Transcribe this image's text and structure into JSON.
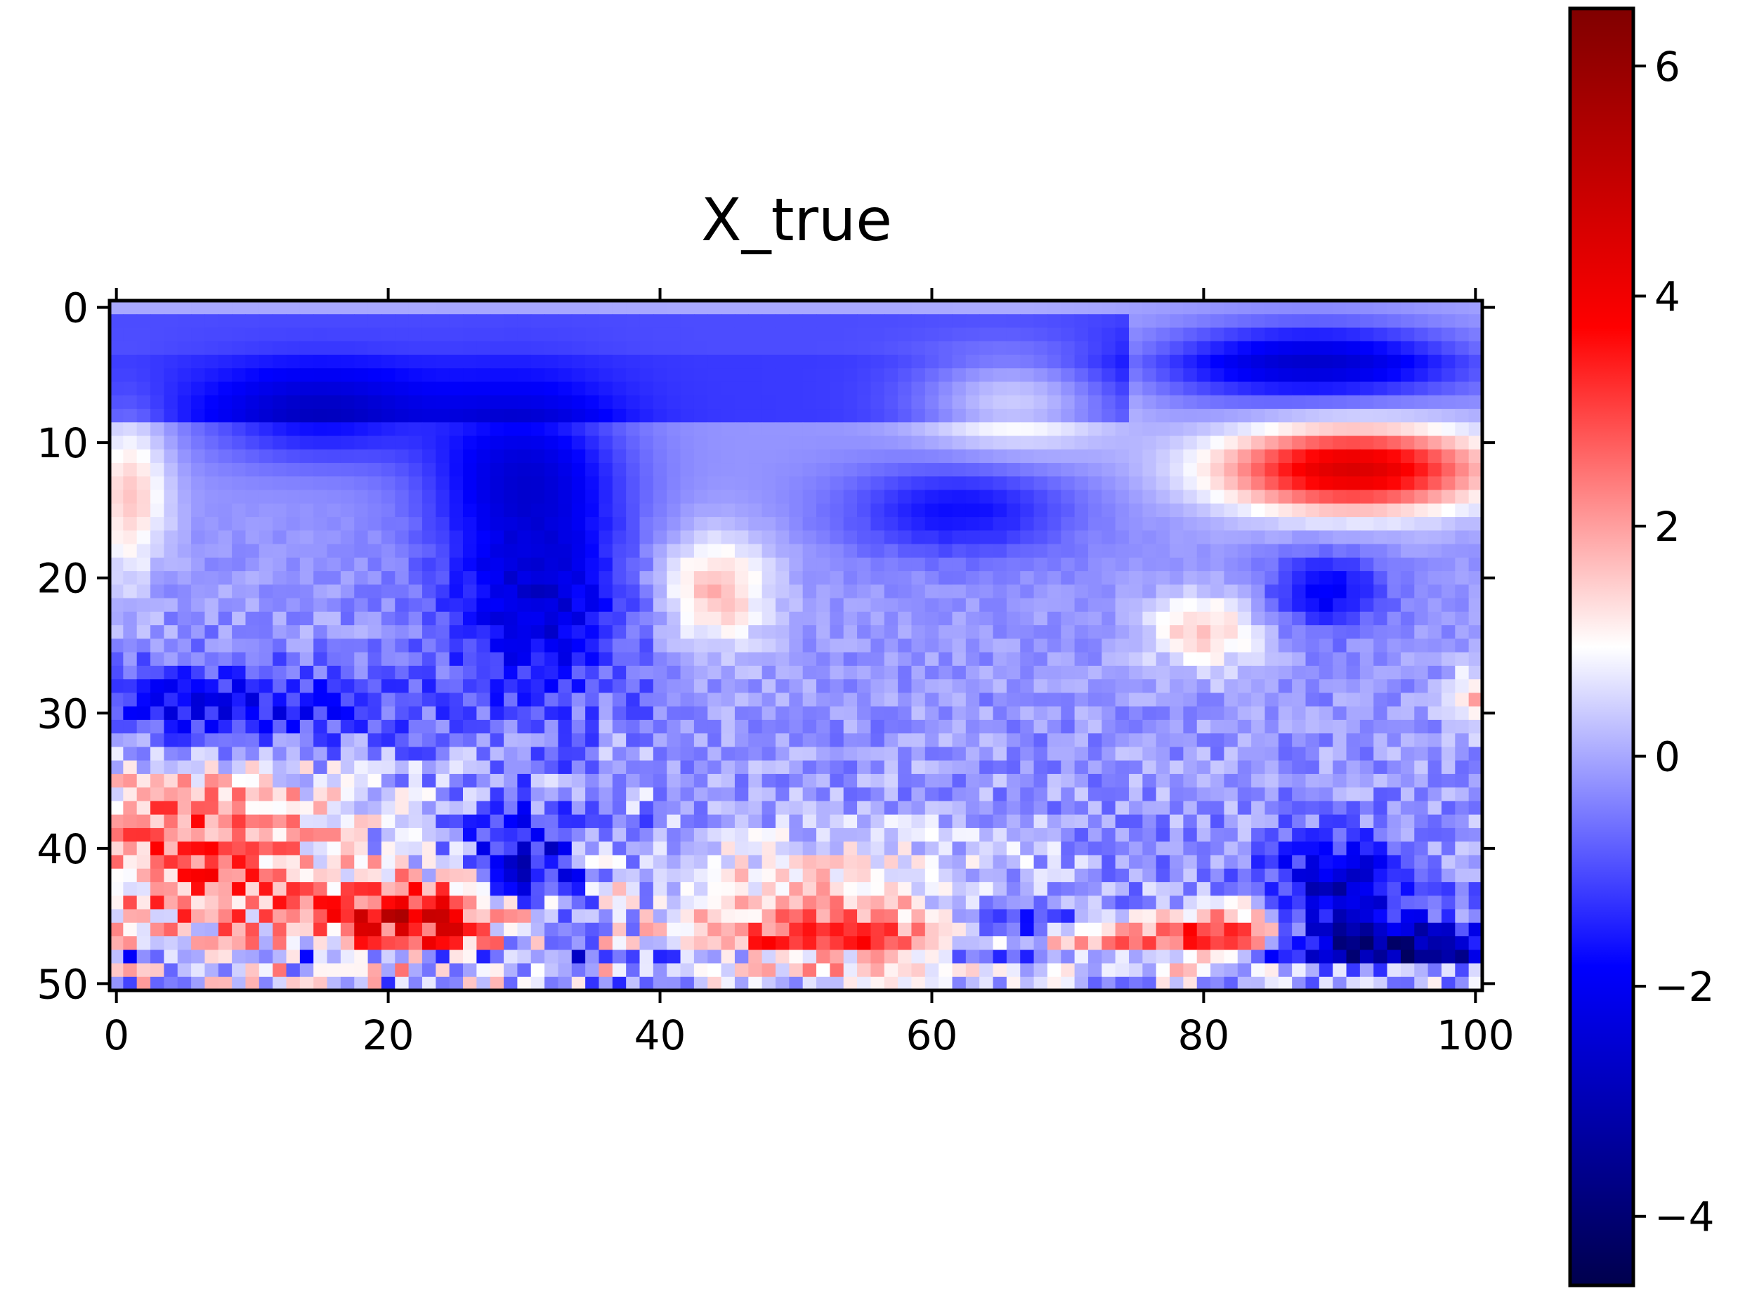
{
  "chart_data": {
    "type": "heatmap",
    "title": "X_true",
    "grid": false,
    "n_rows": 51,
    "n_cols": 101,
    "x_ticks": [
      0,
      20,
      40,
      60,
      80,
      100
    ],
    "y_ticks": [
      0,
      10,
      20,
      30,
      40,
      50
    ],
    "xlim": [
      -0.5,
      100.5
    ],
    "ylim": [
      50.5,
      -0.5
    ],
    "colorbar": {
      "colormap": "seismic",
      "vmin": -4.6,
      "vmax": 6.5,
      "ticks": [
        -4,
        -2,
        0,
        2,
        4,
        6
      ],
      "placement": "right"
    },
    "features": [
      {
        "row": 4,
        "col": 88,
        "sr": 2.0,
        "sc": 8.0,
        "v": -2.4
      },
      {
        "row": 8,
        "col": 15,
        "sr": 2.5,
        "sc": 6.0,
        "v": -1.6
      },
      {
        "row": 12,
        "col": 30,
        "sr": 4.0,
        "sc": 5.0,
        "v": -2.0
      },
      {
        "row": 7,
        "col": 66,
        "sr": 2.5,
        "sc": 5.0,
        "v": 1.6
      },
      {
        "row": 12,
        "col": 91,
        "sr": 2.2,
        "sc": 7.0,
        "v": 4.7
      },
      {
        "row": 14,
        "col": 1,
        "sr": 4.0,
        "sc": 2.0,
        "v": 1.8
      },
      {
        "row": 15,
        "col": 62,
        "sr": 2.5,
        "sc": 6.0,
        "v": -1.5
      },
      {
        "row": 22,
        "col": 31,
        "sr": 5.0,
        "sc": 5.0,
        "v": -2.2
      },
      {
        "row": 21,
        "col": 44,
        "sr": 3.0,
        "sc": 3.0,
        "v": 2.0
      },
      {
        "row": 24,
        "col": 80,
        "sr": 2.0,
        "sc": 3.0,
        "v": 1.8
      },
      {
        "row": 21,
        "col": 89,
        "sr": 2.0,
        "sc": 3.0,
        "v": -1.8
      },
      {
        "row": 29,
        "col": 100,
        "sr": 1.5,
        "sc": 1.5,
        "v": 2.0
      },
      {
        "row": 30,
        "col": 7,
        "sr": 2.5,
        "sc": 9.0,
        "v": -2.3
      },
      {
        "row": 40,
        "col": 6,
        "sr": 6.0,
        "sc": 8.0,
        "v": 2.9
      },
      {
        "row": 45,
        "col": 23,
        "sr": 2.0,
        "sc": 6.0,
        "v": 4.2
      },
      {
        "row": 42,
        "col": 30,
        "sr": 3.0,
        "sc": 3.0,
        "v": -2.5
      },
      {
        "row": 47,
        "col": 53,
        "sr": 1.5,
        "sc": 8.0,
        "v": 3.0
      },
      {
        "row": 47,
        "col": 74,
        "sr": 1.2,
        "sc": 7.0,
        "v": 3.0
      },
      {
        "row": 47,
        "col": 94,
        "sr": 1.0,
        "sc": 7.0,
        "v": -3.0
      },
      {
        "row": 46,
        "col": 66,
        "sr": 1.5,
        "sc": 4.0,
        "v": -2.8
      },
      {
        "row": 43,
        "col": 90,
        "sr": 2.5,
        "sc": 4.0,
        "v": -2.5
      },
      {
        "row": 43,
        "col": 52,
        "sr": 3.0,
        "sc": 10.0,
        "v": 1.6
      },
      {
        "row": 46,
        "col": 82,
        "sr": 1.5,
        "sc": 3.0,
        "v": 2.8
      }
    ]
  }
}
